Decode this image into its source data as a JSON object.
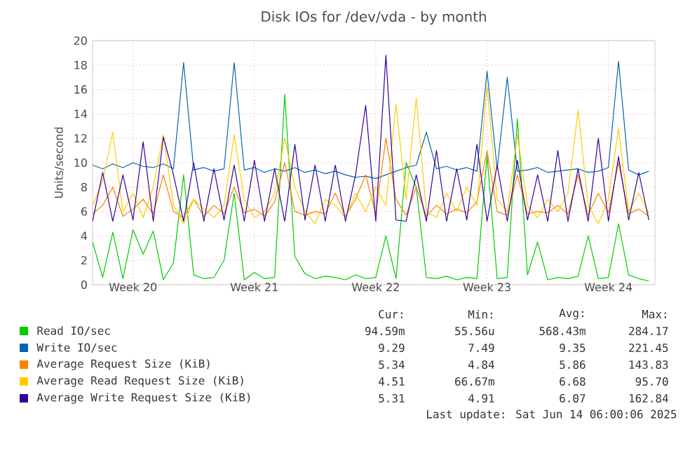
{
  "chart_data": {
    "type": "line",
    "title": "Disk IOs for /dev/vda - by month",
    "ylabel": "Units/second",
    "categories": [
      null,
      null,
      null,
      null,
      "Week 20",
      null,
      null,
      null,
      null,
      null,
      null,
      null,
      null,
      null,
      null,
      null,
      "Week 21",
      null,
      null,
      null,
      null,
      null,
      null,
      null,
      null,
      null,
      null,
      null,
      "Week 22",
      null,
      null,
      null,
      null,
      null,
      null,
      null,
      null,
      null,
      null,
      "Week 23",
      null,
      null,
      null,
      null,
      null,
      null,
      null,
      null,
      null,
      null,
      null,
      "Week 24",
      null,
      null,
      null,
      null
    ],
    "ylim": [
      0,
      20
    ],
    "yticks": [
      0,
      2,
      4,
      6,
      8,
      10,
      12,
      14,
      16,
      18,
      20
    ],
    "grid": true,
    "legend": "bottom",
    "series": [
      {
        "name": "Read IO/sec",
        "color": "#00cc00",
        "values": [
          3.5,
          0.6,
          4.3,
          0.5,
          4.5,
          2.5,
          4.4,
          0.4,
          1.8,
          9.0,
          0.8,
          0.5,
          0.6,
          2.0,
          7.5,
          0.4,
          1.0,
          0.5,
          0.6,
          15.6,
          2.3,
          0.9,
          0.5,
          0.7,
          0.6,
          0.4,
          0.8,
          0.5,
          0.6,
          4.0,
          0.5,
          10.0,
          8.0,
          0.6,
          0.5,
          0.7,
          0.4,
          0.6,
          0.5,
          10.6,
          0.5,
          0.6,
          13.6,
          0.8,
          3.5,
          0.4,
          0.6,
          0.5,
          0.7,
          4.0,
          0.5,
          0.6,
          5.0,
          0.8,
          0.5,
          0.3
        ]
      },
      {
        "name": "Write IO/sec",
        "color": "#0066b3",
        "values": [
          9.8,
          9.5,
          9.9,
          9.6,
          10.0,
          9.7,
          9.6,
          9.9,
          9.5,
          18.2,
          9.4,
          9.6,
          9.3,
          9.5,
          18.2,
          9.4,
          9.6,
          9.2,
          9.5,
          9.3,
          9.6,
          9.2,
          9.4,
          9.1,
          9.3,
          9.0,
          8.8,
          8.9,
          8.7,
          9.0,
          9.3,
          9.6,
          9.8,
          12.5,
          9.5,
          9.7,
          9.4,
          9.6,
          9.3,
          17.5,
          9.5,
          17.0,
          9.3,
          9.4,
          9.6,
          9.2,
          9.3,
          9.4,
          9.5,
          9.2,
          9.3,
          9.6,
          18.3,
          9.4,
          9.0,
          9.3
        ]
      },
      {
        "name": "Average Request Size (KiB)",
        "color": "#ff8000",
        "values": [
          5.8,
          6.5,
          8.0,
          5.6,
          6.2,
          7.0,
          5.8,
          9.0,
          6.0,
          5.5,
          7.0,
          5.6,
          6.5,
          5.8,
          8.0,
          5.9,
          6.2,
          5.6,
          6.8,
          10.0,
          6.0,
          5.7,
          6.0,
          5.8,
          7.5,
          5.6,
          7.0,
          9.0,
          5.8,
          12.0,
          7.0,
          5.7,
          8.0,
          5.6,
          6.5,
          5.8,
          6.2,
          5.9,
          6.8,
          11.0,
          6.0,
          5.7,
          9.0,
          5.8,
          6.0,
          5.9,
          6.5,
          5.8,
          9.0,
          5.7,
          7.5,
          5.9,
          10.0,
          5.8,
          6.2,
          5.6
        ]
      },
      {
        "name": "Average Read Request Size (KiB)",
        "color": "#ffcc00",
        "values": [
          6.5,
          8.5,
          12.5,
          6.0,
          7.5,
          5.5,
          8.0,
          12.3,
          6.5,
          5.0,
          7.0,
          6.2,
          5.5,
          6.5,
          12.3,
          7.0,
          5.5,
          6.0,
          7.5,
          12.0,
          8.0,
          6.0,
          5.0,
          7.0,
          6.5,
          5.5,
          7.5,
          6.0,
          8.0,
          6.5,
          14.8,
          7.0,
          15.3,
          6.0,
          5.5,
          7.5,
          6.0,
          8.0,
          6.5,
          16.3,
          7.0,
          6.0,
          12.3,
          6.5,
          5.5,
          7.0,
          6.0,
          7.5,
          14.3,
          6.5,
          5.0,
          7.0,
          12.8,
          6.0,
          7.5,
          5.8
        ]
      },
      {
        "name": "Average Write Request Size (KiB)",
        "color": "#330099",
        "values": [
          5.2,
          9.2,
          5.2,
          9.0,
          5.3,
          11.7,
          5.2,
          12.1,
          9.0,
          5.2,
          10.0,
          5.2,
          9.5,
          5.3,
          9.8,
          5.2,
          10.2,
          5.2,
          9.5,
          5.2,
          11.5,
          5.3,
          9.8,
          5.2,
          9.8,
          5.2,
          9.0,
          14.7,
          5.2,
          18.8,
          5.3,
          5.2,
          9.0,
          5.2,
          11.0,
          5.2,
          9.5,
          5.3,
          11.5,
          5.2,
          9.8,
          5.2,
          10.2,
          5.3,
          9.0,
          5.2,
          11.0,
          5.2,
          9.5,
          5.2,
          12.0,
          5.2,
          10.5,
          5.3,
          9.2,
          5.3
        ]
      }
    ],
    "annotations": [
      "Cur:",
      "Min:",
      "Avg:",
      "Max:",
      "94.59m",
      "55.56u",
      "568.43m",
      "284.17",
      "9.29",
      "7.49",
      "9.35",
      "221.45",
      "5.34",
      "4.84",
      "5.86",
      "143.83",
      "4.51",
      "66.67m",
      "6.68",
      "95.70",
      "5.31",
      "4.91",
      "6.07",
      "162.84",
      "Last update: Sat Jun 14 06:00:06 2025"
    ]
  }
}
